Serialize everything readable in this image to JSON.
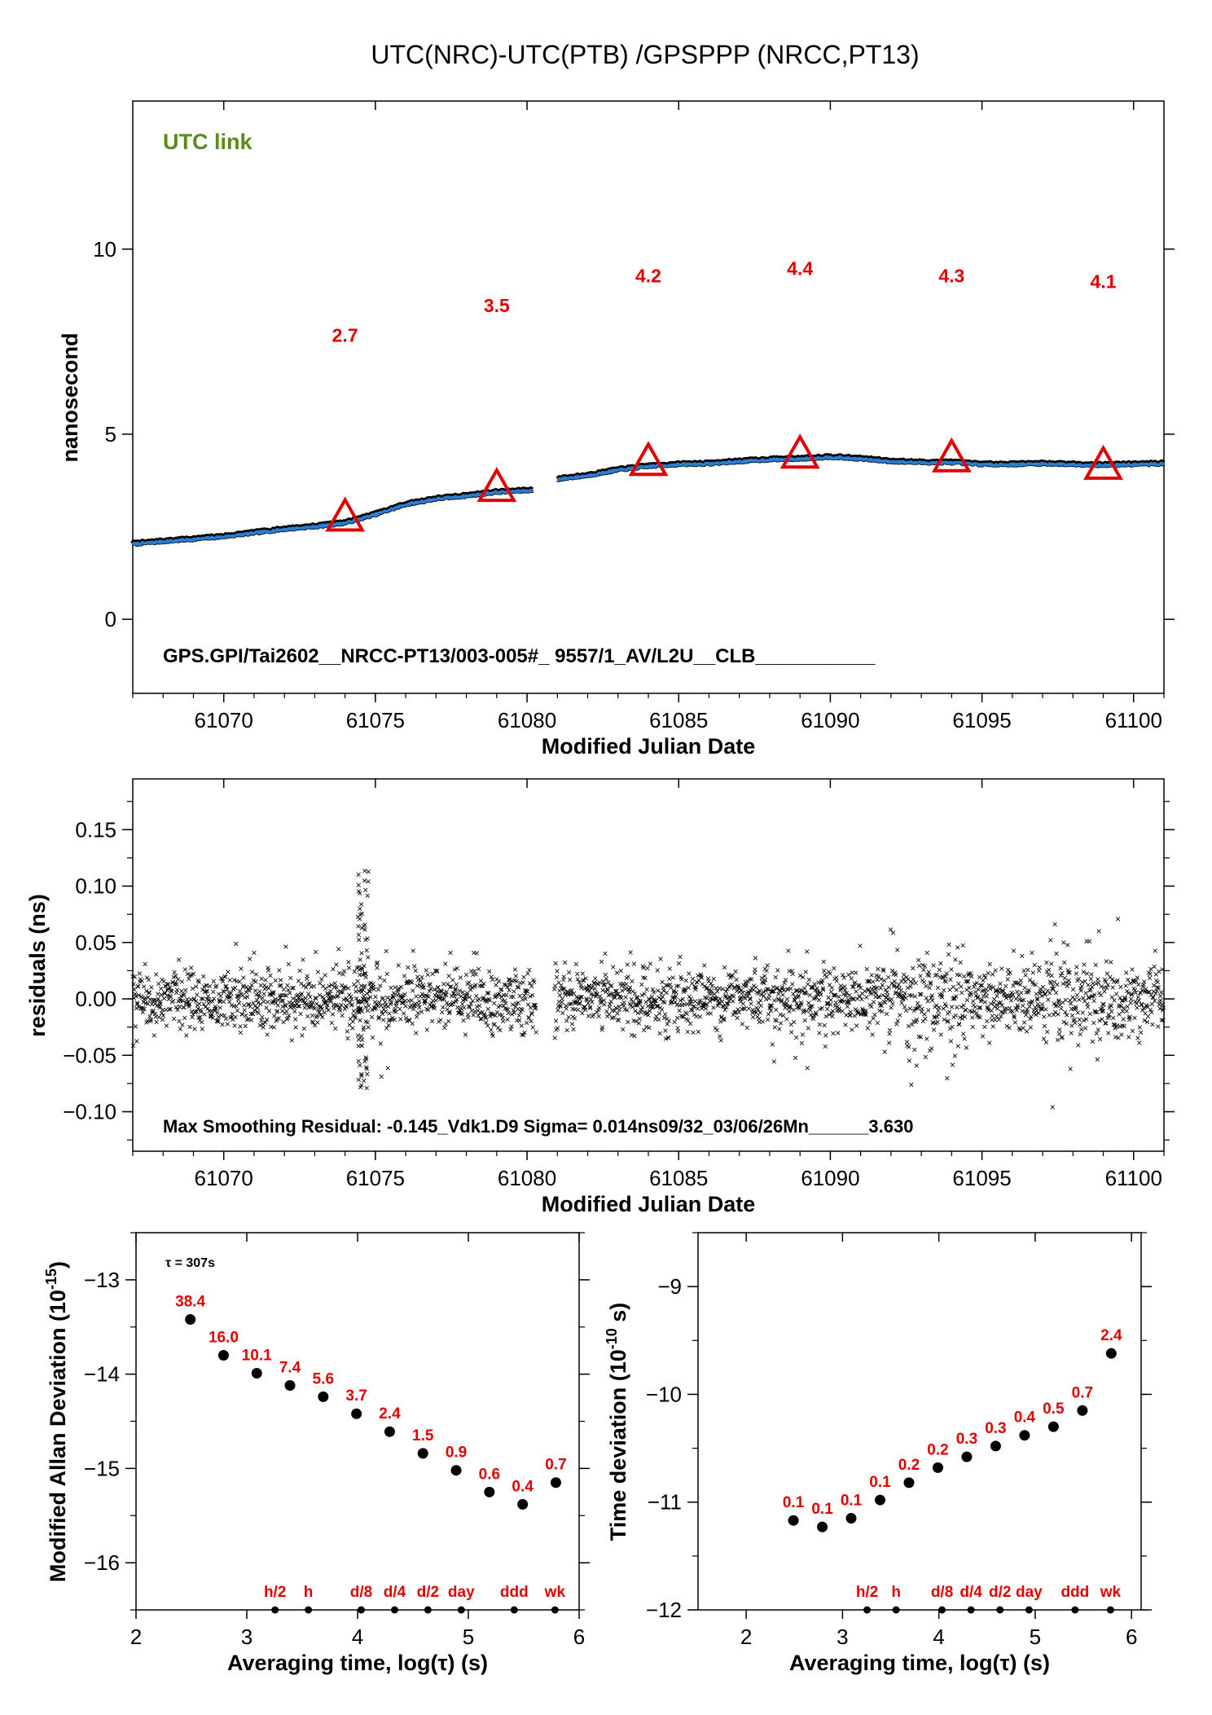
{
  "page_title": "UTC(NRC)-UTC(PTB)  /GPSPPP  (NRCC,PT13)",
  "chart_data": [
    {
      "id": "top",
      "type": "line",
      "corner_label": "UTC link",
      "xlabel": "Modified Julian Date",
      "ylabel": "nanosecond",
      "xlim": [
        61067,
        61101
      ],
      "ylim": [
        -2,
        14
      ],
      "xticks": [
        61070,
        61075,
        61080,
        61085,
        61090,
        61095,
        61100
      ],
      "yticks": [
        0,
        5,
        10
      ],
      "footer": "GPS.GPI/Tai2602__NRCC-PT13/003-005#_  9557/1_AV/L2U__CLB___________",
      "series": {
        "color": "#2a7fd4",
        "points": [
          [
            61067.0,
            2.05
          ],
          [
            61068.0,
            2.12
          ],
          [
            61069.0,
            2.18
          ],
          [
            61070.0,
            2.25
          ],
          [
            61071.0,
            2.35
          ],
          [
            61072.0,
            2.45
          ],
          [
            61073.0,
            2.52
          ],
          [
            61074.0,
            2.62
          ],
          [
            61075.0,
            2.85
          ],
          [
            61076.0,
            3.12
          ],
          [
            61077.0,
            3.27
          ],
          [
            61078.0,
            3.35
          ],
          [
            61079.0,
            3.45
          ],
          [
            61080.2,
            3.5
          ],
          null,
          [
            61081.0,
            3.8
          ],
          [
            61082.0,
            3.9
          ],
          [
            61083.0,
            4.05
          ],
          [
            61084.0,
            4.15
          ],
          [
            61085.0,
            4.2
          ],
          [
            61086.0,
            4.22
          ],
          [
            61087.0,
            4.28
          ],
          [
            61088.0,
            4.33
          ],
          [
            61089.0,
            4.35
          ],
          [
            61090.0,
            4.4
          ],
          [
            61091.0,
            4.35
          ],
          [
            61092.0,
            4.28
          ],
          [
            61093.0,
            4.25
          ],
          [
            61094.0,
            4.25
          ],
          [
            61095.0,
            4.2
          ],
          [
            61096.0,
            4.2
          ],
          [
            61097.0,
            4.22
          ],
          [
            61098.0,
            4.2
          ],
          [
            61099.0,
            4.18
          ],
          [
            61100.0,
            4.2
          ],
          [
            61101.0,
            4.22
          ]
        ]
      },
      "markers": [
        {
          "x": 61074,
          "y": 2.7,
          "label": "2.7"
        },
        {
          "x": 61079,
          "y": 3.5,
          "label": "3.5"
        },
        {
          "x": 61084,
          "y": 4.2,
          "label": "4.2"
        },
        {
          "x": 61089,
          "y": 4.4,
          "label": "4.4"
        },
        {
          "x": 61094,
          "y": 4.3,
          "label": "4.3"
        },
        {
          "x": 61099,
          "y": 4.1,
          "label": "4.1"
        }
      ],
      "marker_label_y": [
        7.5,
        8.3,
        9.1,
        9.3,
        9.1,
        8.95
      ]
    },
    {
      "id": "middle",
      "type": "scatter",
      "xlabel": "Modified Julian Date",
      "ylabel": "residuals (ns)",
      "xlim": [
        61067,
        61101
      ],
      "ylim": [
        -0.135,
        0.195
      ],
      "xticks": [
        61070,
        61075,
        61080,
        61085,
        61090,
        61095,
        61100
      ],
      "yticks": [
        "0.15",
        "0.10",
        "0.05",
        "0.00",
        "−0.05",
        "−0.10"
      ],
      "ytick_values": [
        0.15,
        0.1,
        0.05,
        0.0,
        -0.05,
        -0.1
      ],
      "footer": "Max Smoothing Residual: -0.145_Vdk1.D9  Sigma= 0.014ns09/32_03/06/26Mn______3.630",
      "gap": [
        61080.3,
        61080.9
      ],
      "sigma": 0.014,
      "spike": {
        "x": 61074.6,
        "min": -0.08,
        "max": 0.115
      },
      "marker": "×"
    },
    {
      "id": "mdev",
      "type": "scatter",
      "corner_label": "τ = 307s",
      "xlabel": "Averaging time, log(τ) (s)",
      "ylabel": "Modified Allan Deviation (10^-15)",
      "ylabel_main": "Modified Allan Deviation (10",
      "ylabel_exp": "-15",
      "ylabel_end": ")",
      "xlim": [
        2,
        6
      ],
      "ylim": [
        -16.5,
        -12.5
      ],
      "xticks": [
        2,
        3,
        4,
        5,
        6
      ],
      "yticks": [
        -13,
        -14,
        -15,
        -16
      ],
      "ytick_labels": [
        "−13",
        "−14",
        "−15",
        "−16"
      ],
      "points": [
        {
          "x": 2.49,
          "y": -13.42,
          "label": "38.4"
        },
        {
          "x": 2.79,
          "y": -13.8,
          "label": "16.0"
        },
        {
          "x": 3.09,
          "y": -13.99,
          "label": "10.1"
        },
        {
          "x": 3.39,
          "y": -14.12,
          "label": "7.4"
        },
        {
          "x": 3.69,
          "y": -14.24,
          "label": "5.6"
        },
        {
          "x": 3.99,
          "y": -14.42,
          "label": "3.7"
        },
        {
          "x": 4.29,
          "y": -14.61,
          "label": "2.4"
        },
        {
          "x": 4.59,
          "y": -14.84,
          "label": "1.5"
        },
        {
          "x": 4.89,
          "y": -15.02,
          "label": "0.9"
        },
        {
          "x": 5.19,
          "y": -15.25,
          "label": "0.6"
        },
        {
          "x": 5.49,
          "y": -15.38,
          "label": "0.4"
        },
        {
          "x": 5.79,
          "y": -15.15,
          "label": "0.7"
        }
      ],
      "time_marks": [
        {
          "x": 3.255,
          "label": "h/2"
        },
        {
          "x": 3.556,
          "label": "h"
        },
        {
          "x": 4.033,
          "label": "d/8"
        },
        {
          "x": 4.334,
          "label": "d/4"
        },
        {
          "x": 4.635,
          "label": "d/2"
        },
        {
          "x": 4.936,
          "label": "day"
        },
        {
          "x": 5.414,
          "label": "ddd"
        },
        {
          "x": 5.782,
          "label": "wk"
        }
      ]
    },
    {
      "id": "tdev",
      "type": "scatter",
      "xlabel": "Averaging time, log(τ) (s)",
      "ylabel": "Time deviation (10^-10 s)",
      "ylabel_main": "Time deviation (10",
      "ylabel_exp": "-10",
      "ylabel_end": " s)",
      "xlim": [
        1.5,
        6.1
      ],
      "ylim": [
        -12,
        -8.5
      ],
      "xticks": [
        2,
        3,
        4,
        5,
        6
      ],
      "yticks": [
        -9,
        -10,
        -11,
        -12
      ],
      "ytick_labels": [
        "−9",
        "−10",
        "−11",
        "−12"
      ],
      "points": [
        {
          "x": 2.49,
          "y": -11.17,
          "label": "0.1"
        },
        {
          "x": 2.79,
          "y": -11.23,
          "label": "0.1"
        },
        {
          "x": 3.09,
          "y": -11.15,
          "label": "0.1"
        },
        {
          "x": 3.39,
          "y": -10.98,
          "label": "0.1"
        },
        {
          "x": 3.69,
          "y": -10.82,
          "label": "0.2"
        },
        {
          "x": 3.99,
          "y": -10.68,
          "label": "0.2"
        },
        {
          "x": 4.29,
          "y": -10.58,
          "label": "0.3"
        },
        {
          "x": 4.59,
          "y": -10.48,
          "label": "0.3"
        },
        {
          "x": 4.89,
          "y": -10.38,
          "label": "0.4"
        },
        {
          "x": 5.19,
          "y": -10.3,
          "label": "0.5"
        },
        {
          "x": 5.49,
          "y": -10.15,
          "label": "0.7"
        },
        {
          "x": 5.79,
          "y": -9.62,
          "label": "2.4"
        }
      ],
      "time_marks": [
        {
          "x": 3.255,
          "label": "h/2"
        },
        {
          "x": 3.556,
          "label": "h"
        },
        {
          "x": 4.033,
          "label": "d/8"
        },
        {
          "x": 4.334,
          "label": "d/4"
        },
        {
          "x": 4.635,
          "label": "d/2"
        },
        {
          "x": 4.936,
          "label": "day"
        },
        {
          "x": 5.414,
          "label": "ddd"
        },
        {
          "x": 5.782,
          "label": "wk"
        }
      ]
    }
  ]
}
